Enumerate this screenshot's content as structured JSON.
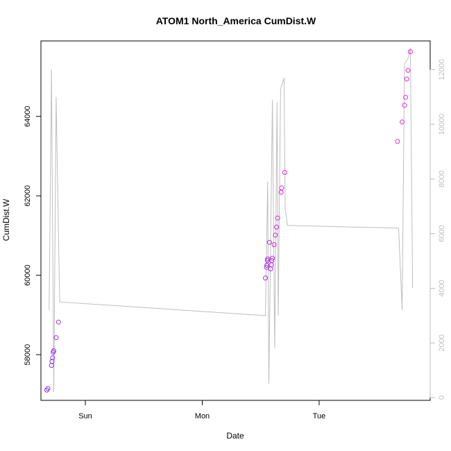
{
  "chart_data": {
    "type": "scatter",
    "title": "ATOM1 North_America CumDist.W",
    "xlabel": "Date",
    "ylabel": "CumDist.W",
    "xlim": [
      -0.38,
      2.95
    ],
    "ylim": [
      56850,
      65900
    ],
    "y2lim": [
      -100,
      13050
    ],
    "x_ticks": [
      {
        "value": 0,
        "label": "Sun"
      },
      {
        "value": 1,
        "label": "Mon"
      },
      {
        "value": 2,
        "label": "Tue"
      }
    ],
    "y_ticks": [
      {
        "value": 58000,
        "label": "58000"
      },
      {
        "value": 60000,
        "label": "60000"
      },
      {
        "value": 62000,
        "label": "62000"
      },
      {
        "value": 64000,
        "label": "64000"
      }
    ],
    "y2_ticks": [
      {
        "value": 0,
        "label": "0"
      },
      {
        "value": 2000,
        "label": "2000"
      },
      {
        "value": 4000,
        "label": "4000"
      },
      {
        "value": 6000,
        "label": "6000"
      },
      {
        "value": 8000,
        "label": "8000"
      },
      {
        "value": 10000,
        "label": "10000"
      },
      {
        "value": 12000,
        "label": "12000"
      }
    ],
    "points": [
      {
        "x": -0.33,
        "y": 57110
      },
      {
        "x": -0.32,
        "y": 57150
      },
      {
        "x": -0.29,
        "y": 57730
      },
      {
        "x": -0.285,
        "y": 57830
      },
      {
        "x": -0.28,
        "y": 57920
      },
      {
        "x": -0.275,
        "y": 58060
      },
      {
        "x": -0.27,
        "y": 58100
      },
      {
        "x": -0.25,
        "y": 58430
      },
      {
        "x": -0.23,
        "y": 58820
      },
      {
        "x": 1.54,
        "y": 59930
      },
      {
        "x": 1.55,
        "y": 60200
      },
      {
        "x": 1.553,
        "y": 60250
      },
      {
        "x": 1.557,
        "y": 60370
      },
      {
        "x": 1.56,
        "y": 60410
      },
      {
        "x": 1.575,
        "y": 60830
      },
      {
        "x": 1.585,
        "y": 60160
      },
      {
        "x": 1.59,
        "y": 60260
      },
      {
        "x": 1.595,
        "y": 60370
      },
      {
        "x": 1.6,
        "y": 60430
      },
      {
        "x": 1.615,
        "y": 60770
      },
      {
        "x": 1.625,
        "y": 61010
      },
      {
        "x": 1.635,
        "y": 61210
      },
      {
        "x": 1.645,
        "y": 61440
      },
      {
        "x": 1.675,
        "y": 62090
      },
      {
        "x": 1.68,
        "y": 62200
      },
      {
        "x": 1.705,
        "y": 62590
      },
      {
        "x": 2.67,
        "y": 63370
      },
      {
        "x": 2.71,
        "y": 63860
      },
      {
        "x": 2.73,
        "y": 64280
      },
      {
        "x": 2.74,
        "y": 64480
      },
      {
        "x": 2.75,
        "y": 64940
      },
      {
        "x": 2.76,
        "y": 65160
      },
      {
        "x": 2.78,
        "y": 65630
      }
    ],
    "line": [
      [
        -0.31,
        3200
      ],
      [
        -0.29,
        12000
      ],
      [
        -0.27,
        200
      ],
      [
        -0.25,
        11000
      ],
      [
        -0.22,
        3500
      ],
      [
        1.54,
        3000
      ],
      [
        1.56,
        7900
      ],
      [
        1.57,
        500
      ],
      [
        1.6,
        10900
      ],
      [
        1.62,
        1800
      ],
      [
        1.64,
        10800
      ],
      [
        1.65,
        3000
      ],
      [
        1.67,
        11300
      ],
      [
        1.7,
        11700
      ],
      [
        1.71,
        6900
      ],
      [
        1.73,
        6300
      ],
      [
        2.68,
        6200
      ],
      [
        2.71,
        3200
      ],
      [
        2.73,
        12200
      ],
      [
        2.76,
        12400
      ],
      [
        2.78,
        12800
      ],
      [
        2.8,
        4000
      ]
    ],
    "point_color_start": "#7b2ff5",
    "point_color_end": "#ff1fd8",
    "line_color": "#bebebe",
    "grid": false,
    "legend": "none"
  }
}
